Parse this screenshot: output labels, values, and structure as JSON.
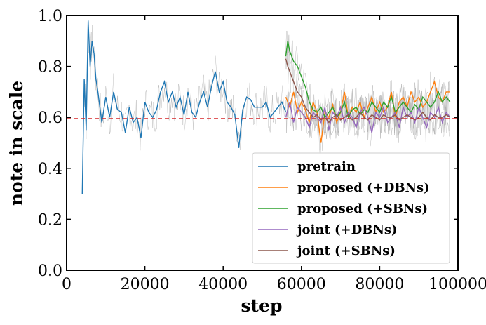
{
  "chart_data": {
    "type": "line",
    "title": "",
    "xlabel": "step",
    "ylabel": "note in scale",
    "xlim": [
      0,
      100000
    ],
    "ylim": [
      0.0,
      1.0
    ],
    "xticks": [
      0,
      20000,
      40000,
      60000,
      80000,
      100000
    ],
    "xtick_labels": [
      "0",
      "20000",
      "40000",
      "60000",
      "80000",
      "100000"
    ],
    "yticks": [
      0.0,
      0.2,
      0.4,
      0.6,
      0.8,
      1.0
    ],
    "ytick_labels": [
      "0.0",
      "0.2",
      "0.4",
      "0.6",
      "0.8",
      "1.0"
    ],
    "grid": false,
    "legend_position": "lower-right",
    "reference_line": {
      "y": 0.595,
      "color": "#d62728",
      "style": "dashed"
    },
    "series": [
      {
        "name": "pretrain",
        "color": "#1f77b4",
        "x": [
          4000,
          4500,
          5000,
          5500,
          6000,
          6500,
          7000,
          7500,
          8000,
          9000,
          10000,
          11000,
          12000,
          13000,
          14000,
          15000,
          16000,
          17000,
          18000,
          19000,
          20000,
          21000,
          22000,
          23000,
          24000,
          25000,
          26000,
          27000,
          28000,
          29000,
          30000,
          31000,
          32000,
          33000,
          34000,
          35000,
          36000,
          37000,
          38000,
          39000,
          40000,
          41000,
          42000,
          43000,
          44000,
          45000,
          46000,
          47000,
          48000,
          49000,
          50000,
          51000,
          52000,
          53000,
          54000,
          55000,
          56000
        ],
        "y": [
          0.3,
          0.75,
          0.55,
          0.98,
          0.8,
          0.9,
          0.85,
          0.75,
          0.7,
          0.58,
          0.68,
          0.6,
          0.7,
          0.63,
          0.62,
          0.54,
          0.64,
          0.58,
          0.6,
          0.52,
          0.66,
          0.62,
          0.6,
          0.63,
          0.7,
          0.74,
          0.66,
          0.7,
          0.64,
          0.68,
          0.61,
          0.7,
          0.62,
          0.6,
          0.66,
          0.7,
          0.64,
          0.72,
          0.78,
          0.7,
          0.74,
          0.66,
          0.64,
          0.61,
          0.48,
          0.63,
          0.68,
          0.67,
          0.64,
          0.64,
          0.64,
          0.66,
          0.6,
          0.62,
          0.64,
          0.66,
          0.62
        ]
      },
      {
        "name": "proposed (+DBNs)",
        "color": "#ff7f0e",
        "x": [
          56000,
          57000,
          58000,
          59000,
          60000,
          61000,
          62000,
          63000,
          64000,
          65000,
          66000,
          67000,
          68000,
          69000,
          70000,
          71000,
          72000,
          73000,
          74000,
          75000,
          76000,
          77000,
          78000,
          79000,
          80000,
          81000,
          82000,
          83000,
          84000,
          85000,
          86000,
          87000,
          88000,
          89000,
          90000,
          91000,
          92000,
          93000,
          94000,
          95000,
          96000,
          97000,
          98000
        ],
        "y": [
          0.68,
          0.64,
          0.7,
          0.62,
          0.66,
          0.63,
          0.58,
          0.66,
          0.62,
          0.5,
          0.62,
          0.6,
          0.65,
          0.58,
          0.62,
          0.7,
          0.6,
          0.64,
          0.62,
          0.66,
          0.6,
          0.64,
          0.68,
          0.62,
          0.66,
          0.62,
          0.64,
          0.7,
          0.6,
          0.66,
          0.68,
          0.64,
          0.7,
          0.66,
          0.68,
          0.64,
          0.66,
          0.7,
          0.74,
          0.68,
          0.66,
          0.7,
          0.7
        ]
      },
      {
        "name": "proposed (+SBNs)",
        "color": "#2ca02c",
        "x": [
          56000,
          56500,
          57000,
          58000,
          59000,
          60000,
          61000,
          62000,
          63000,
          64000,
          65000,
          66000,
          67000,
          68000,
          69000,
          70000,
          71000,
          72000,
          73000,
          74000,
          75000,
          76000,
          77000,
          78000,
          79000,
          80000,
          81000,
          82000,
          83000,
          84000,
          85000,
          86000,
          87000,
          88000,
          89000,
          90000,
          91000,
          92000,
          93000,
          94000,
          95000,
          96000,
          97000,
          98000
        ],
        "y": [
          0.84,
          0.9,
          0.86,
          0.82,
          0.8,
          0.76,
          0.72,
          0.66,
          0.63,
          0.62,
          0.64,
          0.6,
          0.62,
          0.64,
          0.6,
          0.62,
          0.66,
          0.6,
          0.63,
          0.64,
          0.61,
          0.63,
          0.62,
          0.66,
          0.64,
          0.62,
          0.66,
          0.64,
          0.68,
          0.62,
          0.64,
          0.66,
          0.64,
          0.62,
          0.65,
          0.63,
          0.68,
          0.66,
          0.64,
          0.66,
          0.7,
          0.66,
          0.68,
          0.66
        ]
      },
      {
        "name": "joint (+DBNs)",
        "color": "#9467bd",
        "x": [
          56000,
          57000,
          58000,
          59000,
          60000,
          61000,
          62000,
          63000,
          64000,
          65000,
          66000,
          67000,
          68000,
          69000,
          70000,
          71000,
          72000,
          73000,
          74000,
          75000,
          76000,
          77000,
          78000,
          79000,
          80000,
          81000,
          82000,
          83000,
          84000,
          85000,
          86000,
          87000,
          88000,
          89000,
          90000,
          91000,
          92000,
          93000,
          94000,
          95000,
          96000,
          97000,
          98000
        ],
        "y": [
          0.6,
          0.66,
          0.58,
          0.64,
          0.62,
          0.6,
          0.56,
          0.62,
          0.6,
          0.58,
          0.64,
          0.55,
          0.62,
          0.6,
          0.64,
          0.58,
          0.62,
          0.6,
          0.56,
          0.62,
          0.64,
          0.6,
          0.54,
          0.62,
          0.6,
          0.64,
          0.58,
          0.6,
          0.62,
          0.56,
          0.64,
          0.6,
          0.62,
          0.58,
          0.64,
          0.6,
          0.56,
          0.62,
          0.6,
          0.64,
          0.58,
          0.62,
          0.6
        ]
      },
      {
        "name": "joint (+SBNs)",
        "color": "#8c564b",
        "x": [
          56000,
          56500,
          57000,
          58000,
          59000,
          60000,
          61000,
          62000,
          63000,
          64000,
          65000,
          66000,
          67000,
          68000,
          69000,
          70000,
          71000,
          72000,
          73000,
          74000,
          75000,
          76000,
          77000,
          78000,
          79000,
          80000,
          81000,
          82000,
          83000,
          84000,
          85000,
          86000,
          87000,
          88000,
          89000,
          90000,
          91000,
          92000,
          93000,
          94000,
          95000,
          96000,
          97000,
          98000
        ],
        "y": [
          0.83,
          0.8,
          0.78,
          0.74,
          0.7,
          0.68,
          0.64,
          0.62,
          0.6,
          0.61,
          0.59,
          0.6,
          0.58,
          0.6,
          0.61,
          0.59,
          0.6,
          0.61,
          0.59,
          0.6,
          0.62,
          0.6,
          0.59,
          0.61,
          0.6,
          0.59,
          0.61,
          0.6,
          0.6,
          0.61,
          0.59,
          0.6,
          0.61,
          0.6,
          0.59,
          0.6,
          0.62,
          0.6,
          0.59,
          0.61,
          0.6,
          0.6,
          0.61,
          0.6
        ]
      }
    ]
  }
}
